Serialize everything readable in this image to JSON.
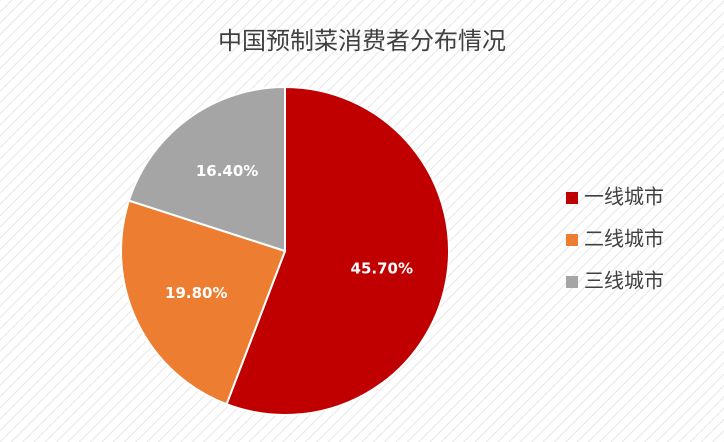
{
  "chart_data": {
    "type": "pie",
    "title": "中国预制菜消费者分布情况",
    "categories": [
      "一线城市",
      "二线城市",
      "三线城市"
    ],
    "values": [
      45.7,
      19.8,
      16.4
    ],
    "value_labels": [
      "45.70%",
      "19.80%",
      "16.40%"
    ],
    "colors": [
      "#c00000",
      "#ed7d31",
      "#a5a5a5"
    ],
    "legend": "right"
  }
}
